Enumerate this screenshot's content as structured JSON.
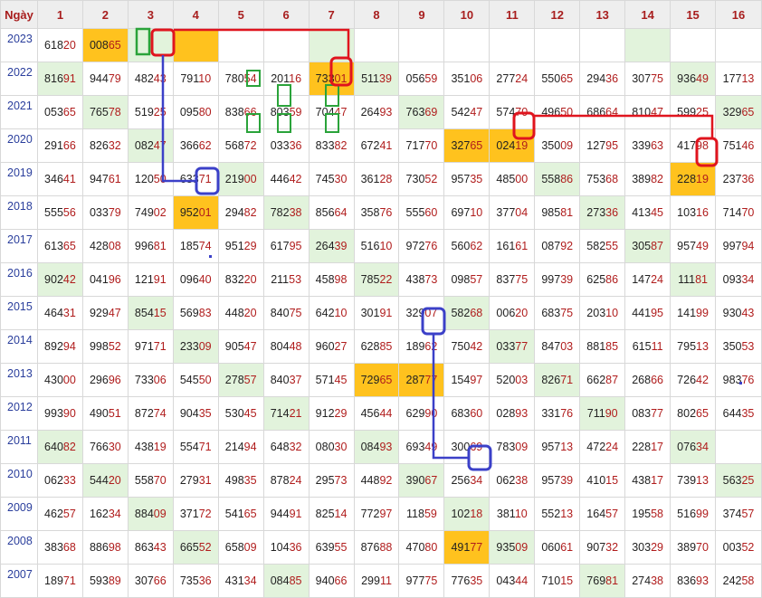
{
  "header": {
    "corner_label": "Ngày",
    "columns": [
      "1",
      "2",
      "3",
      "4",
      "5",
      "6",
      "7",
      "8",
      "9",
      "10",
      "11",
      "12",
      "13",
      "14",
      "15",
      "16"
    ]
  },
  "rows": [
    {
      "year": "2023",
      "cells": [
        "61820",
        "00865",
        "",
        "",
        "",
        "",
        "",
        "",
        "",
        "",
        "",
        "",
        "",
        "",
        "",
        ""
      ],
      "marks": {
        "2": "o",
        "3": "g",
        "4": "o",
        "7": "g",
        "14": "g"
      }
    },
    {
      "year": "2022",
      "cells": [
        "81691",
        "94479",
        "48243",
        "79110",
        "78054",
        "20116",
        "73301",
        "51139",
        "05659",
        "35106",
        "27724",
        "55065",
        "29436",
        "30775",
        "93649",
        "17713"
      ],
      "marks": {
        "1": "g",
        "7": "o",
        "8": "g",
        "15": "g"
      }
    },
    {
      "year": "2021",
      "cells": [
        "05365",
        "76578",
        "51925",
        "09580",
        "83866",
        "80359",
        "70447",
        "26493",
        "76369",
        "54247",
        "57470",
        "49650",
        "68664",
        "81047",
        "59925",
        "32965"
      ],
      "marks": {
        "2": "g",
        "9": "g",
        "16": "g"
      }
    },
    {
      "year": "2020",
      "cells": [
        "29166",
        "82632",
        "08247",
        "36662",
        "56872",
        "03336",
        "83382",
        "67241",
        "71770",
        "32765",
        "02419",
        "35009",
        "12795",
        "33963",
        "41798",
        "75146"
      ],
      "marks": {
        "3": "g",
        "10": "o",
        "11": "o"
      }
    },
    {
      "year": "2019",
      "cells": [
        "34641",
        "94761",
        "12050",
        "63371",
        "21900",
        "44642",
        "74530",
        "36128",
        "73052",
        "95735",
        "48500",
        "55886",
        "75368",
        "38982",
        "22819",
        "23736"
      ],
      "marks": {
        "5": "g",
        "12": "g",
        "15": "o"
      }
    },
    {
      "year": "2018",
      "cells": [
        "55556",
        "03379",
        "74902",
        "95201",
        "29482",
        "78238",
        "85664",
        "35876",
        "55560",
        "69710",
        "37704",
        "98581",
        "27336",
        "41345",
        "10316",
        "71470"
      ],
      "marks": {
        "4": "o",
        "6": "g",
        "13": "g"
      }
    },
    {
      "year": "2017",
      "cells": [
        "61365",
        "42808",
        "99681",
        "18574",
        "95129",
        "61795",
        "26439",
        "51610",
        "97276",
        "56062",
        "16161",
        "08792",
        "58255",
        "30587",
        "95749",
        "99794"
      ],
      "marks": {
        "7": "g",
        "14": "g"
      }
    },
    {
      "year": "2016",
      "cells": [
        "90242",
        "04196",
        "12191",
        "09640",
        "83220",
        "21153",
        "45898",
        "78522",
        "43873",
        "09857",
        "83775",
        "99739",
        "62586",
        "14724",
        "11181",
        "09334"
      ],
      "marks": {
        "1": "g",
        "8": "g",
        "15": "g"
      }
    },
    {
      "year": "2015",
      "cells": [
        "46431",
        "92947",
        "85415",
        "56983",
        "44820",
        "84075",
        "64210",
        "30191",
        "32907",
        "58268",
        "00620",
        "68375",
        "20310",
        "44195",
        "14199",
        "93043"
      ],
      "marks": {
        "3": "g",
        "10": "g"
      }
    },
    {
      "year": "2014",
      "cells": [
        "89294",
        "99852",
        "97171",
        "23309",
        "90547",
        "80448",
        "96027",
        "62885",
        "18962",
        "75042",
        "03377",
        "84703",
        "88185",
        "61511",
        "79513",
        "35053"
      ],
      "marks": {
        "4": "g",
        "11": "g"
      }
    },
    {
      "year": "2013",
      "cells": [
        "43000",
        "29696",
        "73306",
        "54550",
        "27857",
        "84037",
        "57145",
        "72965",
        "28777",
        "15497",
        "52003",
        "82671",
        "66287",
        "26866",
        "72642",
        "98376"
      ],
      "marks": {
        "5": "g",
        "8": "o",
        "9": "o",
        "12": "g"
      }
    },
    {
      "year": "2012",
      "cells": [
        "99390",
        "49051",
        "87274",
        "90435",
        "53045",
        "71421",
        "91229",
        "45644",
        "62990",
        "68360",
        "02893",
        "33176",
        "71190",
        "08377",
        "80265",
        "64435"
      ],
      "marks": {
        "6": "g",
        "13": "g"
      }
    },
    {
      "year": "2011",
      "cells": [
        "64082",
        "76630",
        "43819",
        "55471",
        "21494",
        "64832",
        "08030",
        "08493",
        "69349",
        "30069",
        "78309",
        "95713",
        "47224",
        "22817",
        "07634",
        ""
      ],
      "marks": {
        "1": "g",
        "8": "g",
        "15": "g"
      }
    },
    {
      "year": "2010",
      "cells": [
        "06233",
        "54420",
        "55870",
        "27931",
        "49835",
        "87824",
        "29573",
        "44892",
        "39067",
        "25634",
        "06238",
        "95739",
        "41015",
        "43817",
        "73913",
        "56325"
      ],
      "marks": {
        "2": "g",
        "9": "g",
        "16": "g"
      }
    },
    {
      "year": "2009",
      "cells": [
        "46257",
        "16234",
        "88409",
        "37172",
        "54165",
        "94491",
        "82514",
        "77297",
        "11859",
        "10218",
        "38110",
        "55213",
        "16457",
        "19558",
        "51699",
        "37457"
      ],
      "marks": {
        "3": "g",
        "10": "g"
      }
    },
    {
      "year": "2008",
      "cells": [
        "38368",
        "88698",
        "86343",
        "66552",
        "65809",
        "10436",
        "63955",
        "87688",
        "47080",
        "49177",
        "93509",
        "06061",
        "90732",
        "30329",
        "38970",
        "00352"
      ],
      "marks": {
        "4": "g",
        "10": "o",
        "11": "g"
      }
    },
    {
      "year": "2007",
      "cells": [
        "18971",
        "59389",
        "30766",
        "73536",
        "43134",
        "08485",
        "94066",
        "29911",
        "97775",
        "77635",
        "04344",
        "71015",
        "76981",
        "27438",
        "83693",
        "24258"
      ],
      "marks": {
        "6": "g",
        "13": "g"
      }
    }
  ],
  "colors": {
    "header_bg": "#eeeeee",
    "header_text": "#a81e1e",
    "year_text": "#2a3e9c",
    "green_cell": "#e2f3dc",
    "orange_cell": "#ffc21e",
    "tail_digits": "#b01c1c",
    "red_marker": "#e0141e",
    "blue_marker": "#3b40c8",
    "green_marker": "#2aa33a"
  }
}
